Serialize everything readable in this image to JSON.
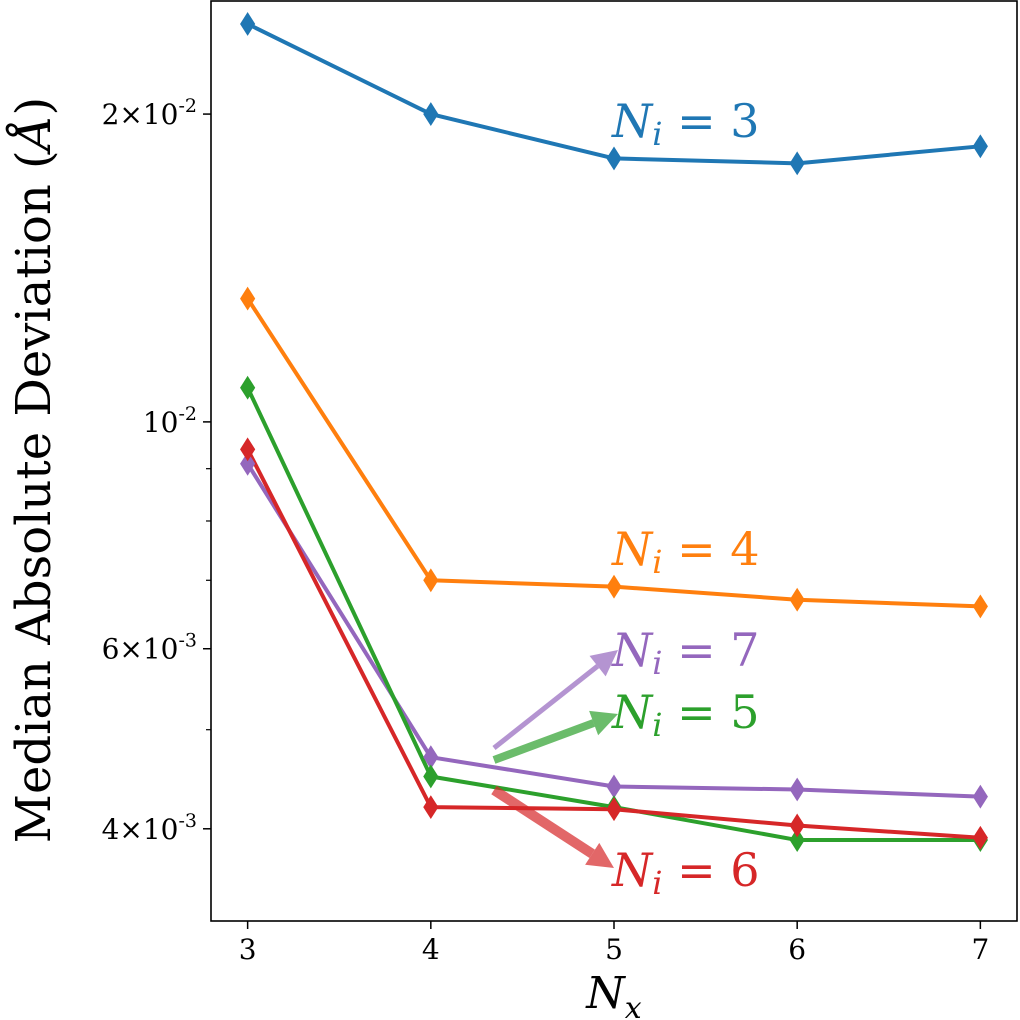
{
  "chart_data": {
    "type": "line",
    "title": "",
    "xlabel": {
      "main": "N",
      "sub": "x"
    },
    "ylabel": {
      "text": "Median Absolute Deviation (",
      "unit": "Å",
      "close": ")"
    },
    "x": [
      3,
      4,
      5,
      6,
      7
    ],
    "xlim": [
      2.8,
      7.2
    ],
    "ylim": [
      0.00325,
      0.0258
    ],
    "yscale": "log",
    "x_ticks": [
      "3",
      "4",
      "5",
      "6",
      "7"
    ],
    "y_ticks": [
      {
        "value": 0.02,
        "mantissa": "2×10",
        "exponent": "-2"
      },
      {
        "value": 0.01,
        "mantissa": "10",
        "exponent": "-2"
      },
      {
        "value": 0.006,
        "mantissa": "6×10",
        "exponent": "-3"
      },
      {
        "value": 0.004,
        "mantissa": "4×10",
        "exponent": "-3"
      }
    ],
    "minor_y_ticks": [
      0.005,
      0.007,
      0.008,
      0.009
    ],
    "series": [
      {
        "name": "N_i = 3",
        "label_main": "N",
        "label_sub": "i",
        "label_eq": "=",
        "label_num": "3",
        "color": "#1f77b4",
        "values": [
          0.0245,
          0.02,
          0.0181,
          0.0179,
          0.0186
        ]
      },
      {
        "name": "N_i = 4",
        "label_main": "N",
        "label_sub": "i",
        "label_eq": "=",
        "label_num": "4",
        "color": "#ff7f0e",
        "values": [
          0.0132,
          0.007,
          0.0069,
          0.0067,
          0.0066
        ]
      },
      {
        "name": "N_i = 7",
        "label_main": "N",
        "label_sub": "i",
        "label_eq": "=",
        "label_num": "7",
        "color": "#9467bd",
        "values": [
          0.0091,
          0.0047,
          0.0044,
          0.00437,
          0.0043
        ]
      },
      {
        "name": "N_i = 5",
        "label_main": "N",
        "label_sub": "i",
        "label_eq": "=",
        "label_num": "5",
        "color": "#2ca02c",
        "values": [
          0.0108,
          0.0045,
          0.0042,
          0.0039,
          0.0039
        ]
      },
      {
        "name": "N_i = 6",
        "label_main": "N",
        "label_sub": "i",
        "label_eq": "=",
        "label_num": "6",
        "color": "#d62728",
        "values": [
          0.0094,
          0.0042,
          0.00418,
          0.00403,
          0.00392
        ]
      }
    ]
  }
}
